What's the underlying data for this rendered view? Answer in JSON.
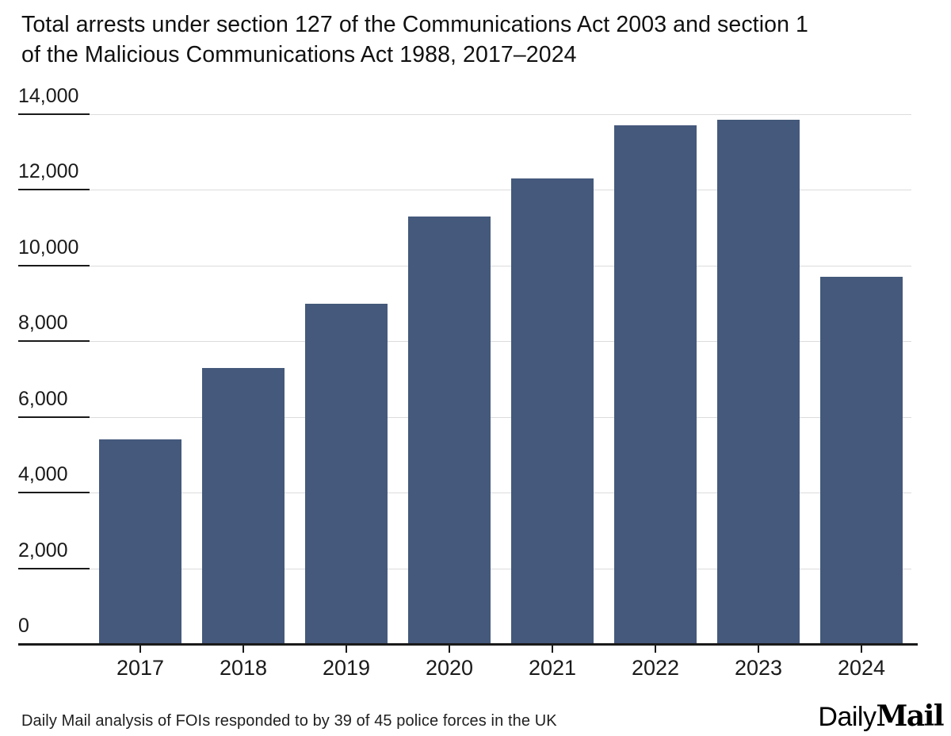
{
  "chart_data": {
    "type": "bar",
    "title": "Total arrests under section 127 of the Communications Act 2003 and section 1 of the Malicious Communications Act 1988, 2017–2024",
    "title_lines": [
      "Total arrests under section 127 of the Communications Act 2003 and section 1",
      "of the Malicious Communications Act 1988, 2017–2024"
    ],
    "categories": [
      "2017",
      "2018",
      "2019",
      "2020",
      "2021",
      "2022",
      "2023",
      "2024"
    ],
    "values": [
      5400,
      7300,
      9000,
      11300,
      12300,
      13700,
      13850,
      9700
    ],
    "xlabel": "",
    "ylabel": "",
    "ylim": [
      0,
      14000
    ],
    "grid": true,
    "legend_position": "none",
    "y_ticks": [
      {
        "value": 0,
        "label": "0"
      },
      {
        "value": 2000,
        "label": "2,000"
      },
      {
        "value": 4000,
        "label": "4,000"
      },
      {
        "value": 6000,
        "label": "6,000"
      },
      {
        "value": 8000,
        "label": "8,000"
      },
      {
        "value": 10000,
        "label": "10,000"
      },
      {
        "value": 12000,
        "label": "12,000"
      },
      {
        "value": 14000,
        "label": "14,000"
      }
    ],
    "bar_color": "#44597B",
    "grid_color": "#dcdcdc",
    "axis_color": "#1a1a1a"
  },
  "footer": {
    "source": "Daily Mail analysis of FOIs responded to by 39 of 45 police forces in the UK",
    "logo_daily": "Daily",
    "logo_mail": "Mail"
  }
}
